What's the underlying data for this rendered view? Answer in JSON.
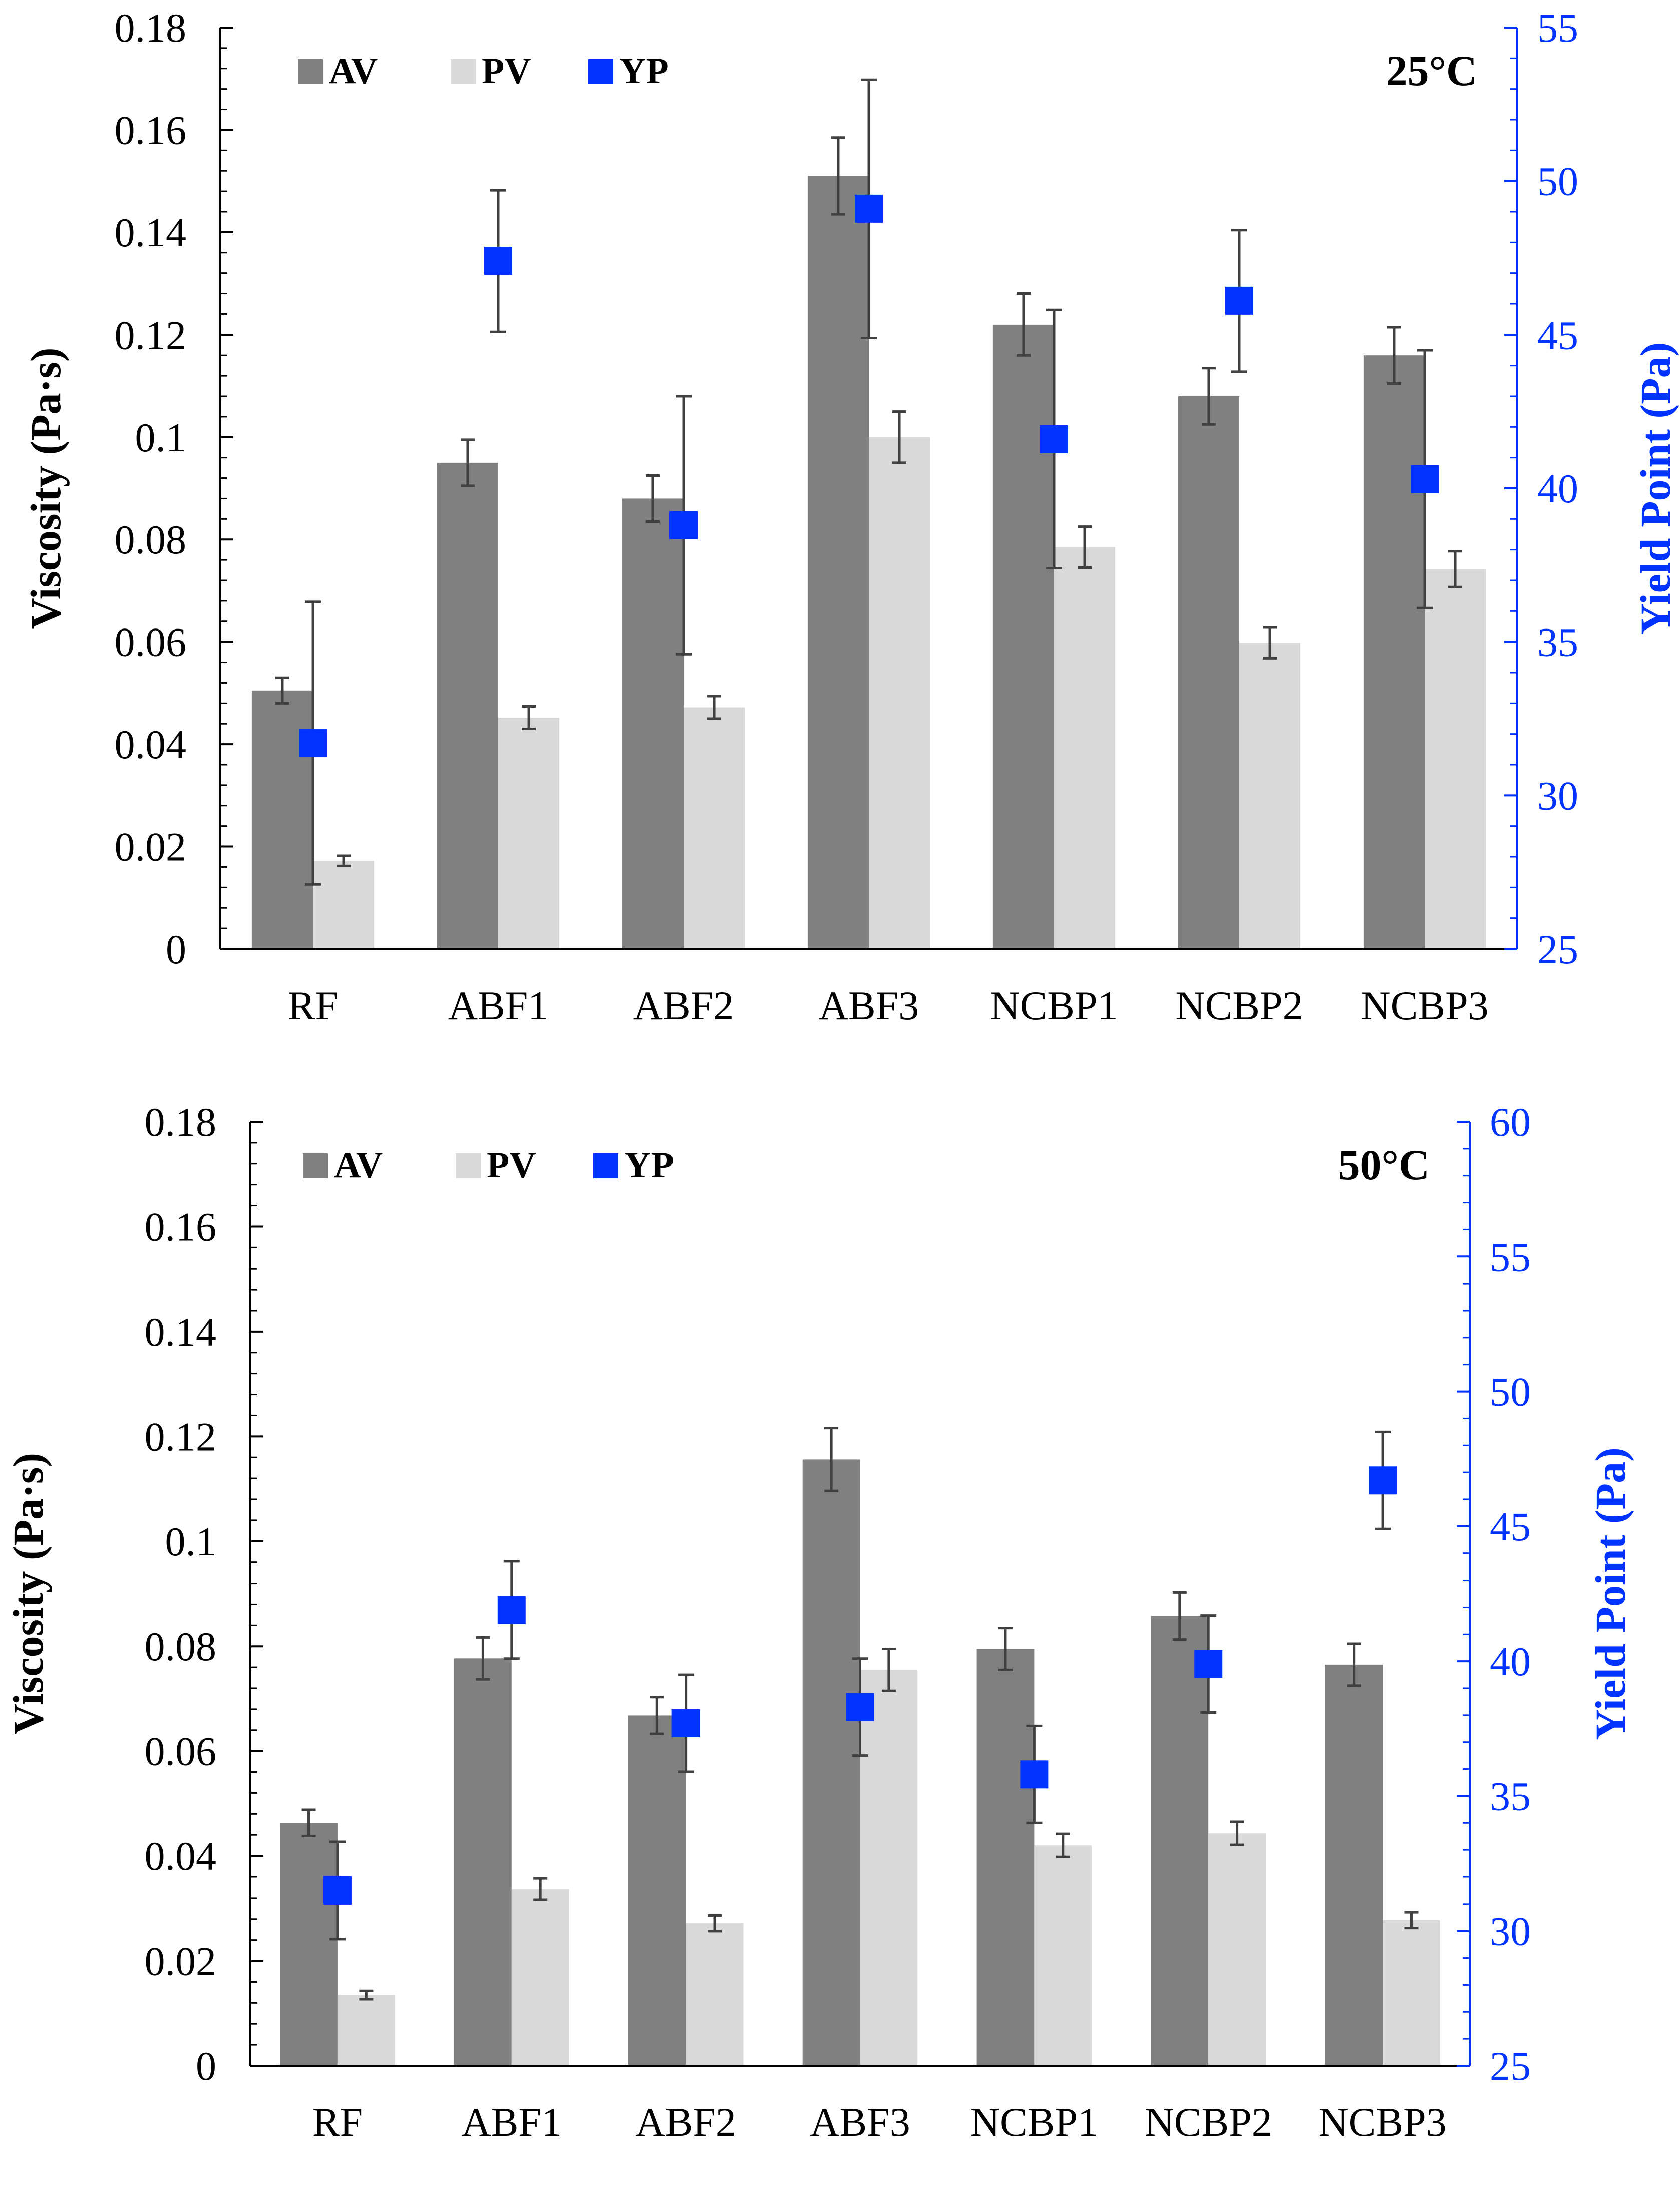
{
  "colors": {
    "av": "#808080",
    "pv": "#d9d9d9",
    "yp": "#0033ff",
    "axis": "#000000",
    "error_bar": "#404040",
    "yp_axis": "#0033ff"
  },
  "chart_data": [
    {
      "type": "bar",
      "panel": "top",
      "title": "25°C",
      "categories": [
        "RF",
        "ABF1",
        "ABF2",
        "ABF3",
        "NCBP1",
        "NCBP2",
        "NCBP3"
      ],
      "ylabel": "Viscosity (Pa·s)",
      "y2label": "Yield Point (Pa)",
      "ylim": [
        0,
        0.18
      ],
      "y2lim": [
        25,
        55
      ],
      "yticks": [
        0,
        0.02,
        0.04,
        0.06,
        0.08,
        0.1,
        0.12,
        0.14,
        0.16,
        0.18
      ],
      "yticklabels": [
        "0",
        "0.02",
        "0.04",
        "0.06",
        "0.08",
        "0.1",
        "0.12",
        "0.14",
        "0.16",
        "0.18"
      ],
      "y2ticks": [
        25,
        30,
        35,
        40,
        45,
        50,
        55
      ],
      "y2ticklabels": [
        "25",
        "30",
        "35",
        "40",
        "45",
        "50",
        "55"
      ],
      "legend": [
        "AV",
        "PV",
        "YP"
      ],
      "legend_position": "top-left",
      "series": [
        {
          "name": "AV",
          "axis": "left",
          "kind": "bar",
          "values": [
            0.0505,
            0.095,
            0.088,
            0.151,
            0.122,
            0.108,
            0.116
          ],
          "errors": [
            0.0025,
            0.0045,
            0.0045,
            0.0075,
            0.006,
            0.0055,
            0.0055
          ]
        },
        {
          "name": "PV",
          "axis": "left",
          "kind": "bar",
          "values": [
            0.0172,
            0.0452,
            0.0472,
            0.1,
            0.0785,
            0.0598,
            0.0742
          ],
          "errors": [
            0.001,
            0.0022,
            0.0022,
            0.005,
            0.004,
            0.003,
            0.0035
          ]
        },
        {
          "name": "YP",
          "axis": "right",
          "kind": "marker",
          "values": [
            31.7,
            47.4,
            38.8,
            49.1,
            41.6,
            46.1,
            40.3
          ],
          "errors": [
            4.6,
            2.3,
            4.2,
            4.2,
            4.2,
            2.3,
            4.2
          ]
        }
      ]
    },
    {
      "type": "bar",
      "panel": "bottom",
      "title": "50°C",
      "categories": [
        "RF",
        "ABF1",
        "ABF2",
        "ABF3",
        "NCBP1",
        "NCBP2",
        "NCBP3"
      ],
      "ylabel": "Viscosity (Pa·s)",
      "y2label": "Yield Point (Pa)",
      "ylim": [
        0,
        0.18
      ],
      "y2lim": [
        25,
        60
      ],
      "yticks": [
        0,
        0.02,
        0.04,
        0.06,
        0.08,
        0.1,
        0.12,
        0.14,
        0.16,
        0.18
      ],
      "yticklabels": [
        "0",
        "0.02",
        "0.04",
        "0.06",
        "0.08",
        "0.1",
        "0.12",
        "0.14",
        "0.16",
        "0.18"
      ],
      "y2ticks": [
        25,
        30,
        35,
        40,
        45,
        50,
        55,
        60
      ],
      "y2ticklabels": [
        "25",
        "30",
        "35",
        "40",
        "45",
        "50",
        "55",
        "60"
      ],
      "legend": [
        "AV",
        "PV",
        "YP"
      ],
      "legend_position": "top-left",
      "series": [
        {
          "name": "AV",
          "axis": "left",
          "kind": "bar",
          "values": [
            0.0463,
            0.0777,
            0.0668,
            0.1156,
            0.0795,
            0.0858,
            0.0765
          ],
          "errors": [
            0.0025,
            0.004,
            0.0035,
            0.006,
            0.004,
            0.0045,
            0.004
          ]
        },
        {
          "name": "PV",
          "axis": "left",
          "kind": "bar",
          "values": [
            0.0135,
            0.0337,
            0.0272,
            0.0755,
            0.042,
            0.0443,
            0.0278
          ],
          "errors": [
            0.0008,
            0.002,
            0.0015,
            0.004,
            0.0022,
            0.0022,
            0.0015
          ]
        },
        {
          "name": "YP",
          "axis": "right",
          "kind": "marker",
          "values": [
            31.5,
            41.9,
            37.7,
            38.3,
            35.8,
            39.9,
            46.7
          ],
          "errors": [
            1.8,
            1.8,
            1.8,
            1.8,
            1.8,
            1.8,
            1.8
          ]
        }
      ]
    }
  ]
}
